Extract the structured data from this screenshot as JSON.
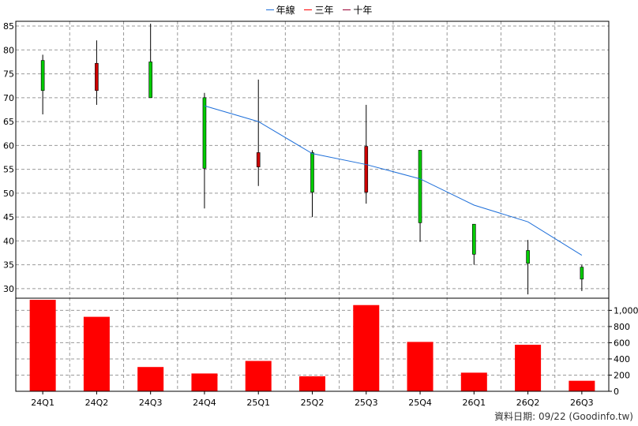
{
  "chart_data": {
    "type": "candlestick+bar",
    "categories": [
      "24Q1",
      "24Q2",
      "24Q3",
      "24Q4",
      "25Q1",
      "25Q2",
      "25Q3",
      "25Q4",
      "26Q1",
      "26Q2",
      "26Q3"
    ],
    "legend": [
      {
        "name": "年線",
        "color": "#1e6fd9"
      },
      {
        "name": "三年",
        "color": "#ff0000"
      },
      {
        "name": "十年",
        "color": "#990033"
      }
    ],
    "price_axis": {
      "ylim": [
        28,
        86
      ],
      "ticks": [
        30,
        35,
        40,
        45,
        50,
        55,
        60,
        65,
        70,
        75,
        80,
        85
      ]
    },
    "candles": [
      {
        "open": 71.5,
        "close": 77.8,
        "high": 79.0,
        "low": 66.5
      },
      {
        "open": 77.2,
        "close": 71.5,
        "high": 82.0,
        "low": 68.5
      },
      {
        "open": 70.0,
        "close": 77.5,
        "high": 85.5,
        "low": 70.0
      },
      {
        "open": 55.2,
        "close": 70.0,
        "high": 71.0,
        "low": 46.8
      },
      {
        "open": 58.5,
        "close": 55.5,
        "high": 73.8,
        "low": 51.5
      },
      {
        "open": 50.2,
        "close": 58.5,
        "high": 59.0,
        "low": 45.0
      },
      {
        "open": 59.8,
        "close": 50.2,
        "high": 68.5,
        "low": 47.8
      },
      {
        "open": 43.8,
        "close": 59.0,
        "high": 59.0,
        "low": 39.8
      },
      {
        "open": 37.2,
        "close": 43.5,
        "high": 43.5,
        "low": 35.0
      },
      {
        "open": 35.3,
        "close": 38.0,
        "high": 40.2,
        "low": 28.8
      },
      {
        "open": 32.0,
        "close": 34.5,
        "high": 35.0,
        "low": 29.5
      }
    ],
    "annual_line": {
      "x": [
        "24Q4",
        "25Q1",
        "25Q2",
        "25Q3",
        "25Q4",
        "26Q1",
        "26Q2",
        "26Q3"
      ],
      "values": [
        68.3,
        65.0,
        58.3,
        56.0,
        53.0,
        47.5,
        44.0,
        37.0
      ]
    },
    "volume_axis": {
      "ylim": [
        0,
        1150
      ],
      "ticks": [
        0,
        200,
        400,
        600,
        800,
        1000
      ],
      "tick_labels": [
        "0",
        "200",
        "400",
        "600",
        "800",
        "1,000"
      ]
    },
    "volume": [
      1130,
      920,
      300,
      220,
      375,
      185,
      1065,
      610,
      230,
      575,
      130
    ],
    "colors": {
      "up": "#00cc00",
      "down": "#cc0000",
      "volume": "#ff0000",
      "grid": "#999999",
      "line": "#1e6fd9"
    },
    "grid": true
  },
  "source_label": "資料日期: 09/22 (Goodinfo.tw)"
}
